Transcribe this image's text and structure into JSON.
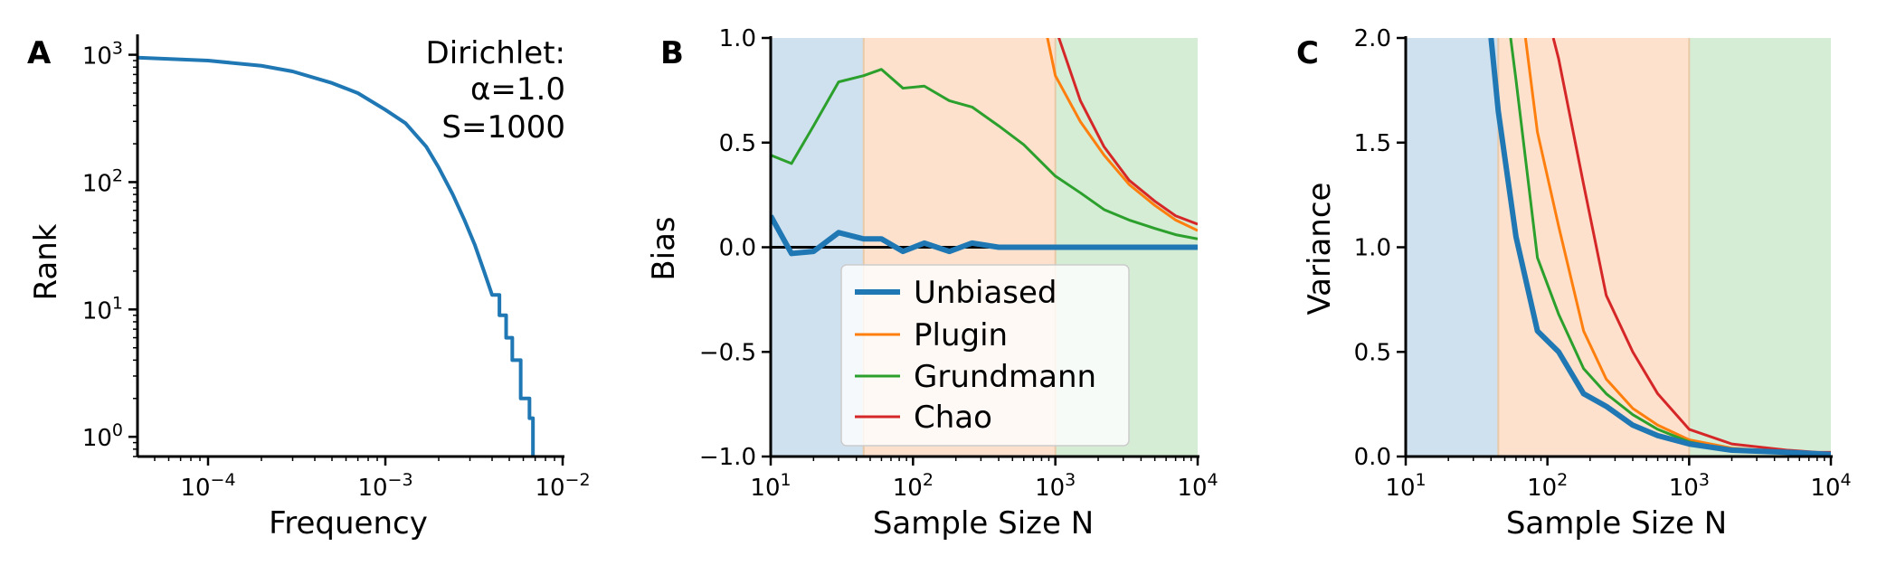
{
  "colors": {
    "unbiased": "#1f77b4",
    "plugin": "#ff7f0e",
    "grundmann": "#2ca02c",
    "chao": "#d62728",
    "band_blue": "#cfe0ee",
    "band_orange": "#fde1cc",
    "band_green": "#d5ecd5"
  },
  "chart_data": [
    {
      "panel": "A",
      "type": "line",
      "xlabel": "Frequency",
      "ylabel": "Rank",
      "xscale": "log",
      "yscale": "log",
      "xlim": [
        4e-05,
        0.01
      ],
      "ylim": [
        0.7,
        1400
      ],
      "xticks": [
        {
          "value": 0.0001,
          "base": "10",
          "exp": "−4"
        },
        {
          "value": 0.001,
          "base": "10",
          "exp": "−3"
        },
        {
          "value": 0.01,
          "base": "10",
          "exp": "−2"
        }
      ],
      "yticks": [
        {
          "value": 1,
          "base": "10",
          "exp": "0"
        },
        {
          "value": 10,
          "base": "10",
          "exp": "1"
        },
        {
          "value": 100,
          "base": "10",
          "exp": "2"
        },
        {
          "value": 1000,
          "base": "10",
          "exp": "3"
        }
      ],
      "annotation": [
        "Dirichlet:",
        "α=1.0",
        "S=1000"
      ],
      "series": [
        {
          "color_key": "unbiased",
          "x": [
            4e-05,
            0.0001,
            0.0002,
            0.0003,
            0.0005,
            0.0007,
            0.001,
            0.0013,
            0.0017,
            0.002,
            0.0024,
            0.0028,
            0.0032,
            0.0036,
            0.004,
            0.0044,
            0.0048,
            0.0052,
            0.0058,
            0.0065,
            0.0068
          ],
          "y": [
            950,
            900,
            820,
            740,
            600,
            500,
            370,
            290,
            190,
            130,
            80,
            50,
            32,
            20,
            13,
            9,
            6,
            4,
            2,
            1.4,
            0.7
          ]
        }
      ]
    },
    {
      "panel": "B",
      "type": "line",
      "xlabel": "Sample Size N",
      "ylabel": "Bias",
      "xscale": "log",
      "xlim": [
        10,
        10000
      ],
      "ylim": [
        -1.0,
        1.0
      ],
      "xticks": [
        {
          "value": 10,
          "base": "10",
          "exp": "1"
        },
        {
          "value": 100,
          "base": "10",
          "exp": "2"
        },
        {
          "value": 1000,
          "base": "10",
          "exp": "3"
        },
        {
          "value": 10000,
          "base": "10",
          "exp": "4"
        }
      ],
      "yticks": [
        {
          "value": -1.0,
          "label": "−1.0"
        },
        {
          "value": -0.5,
          "label": "−0.5"
        },
        {
          "value": 0.0,
          "label": "0.0"
        },
        {
          "value": 0.5,
          "label": "0.5"
        },
        {
          "value": 1.0,
          "label": "1.0"
        }
      ],
      "bands": [
        {
          "from": 10,
          "to": 45,
          "color_key": "band_blue"
        },
        {
          "from": 45,
          "to": 1000,
          "color_key": "band_orange"
        },
        {
          "from": 1000,
          "to": 10000,
          "color_key": "band_green"
        }
      ],
      "hline": 0,
      "legend": {
        "position": "lower-center"
      },
      "series": [
        {
          "name": "Unbiased",
          "color_key": "unbiased",
          "width": 6,
          "x": [
            10,
            14,
            20,
            30,
            45,
            60,
            85,
            120,
            180,
            260,
            400,
            600,
            1000,
            2000,
            5000,
            10000
          ],
          "y": [
            0.15,
            -0.03,
            -0.02,
            0.07,
            0.04,
            0.04,
            -0.02,
            0.02,
            -0.02,
            0.02,
            0.0,
            0.0,
            0.0,
            0.0,
            0.0,
            0.0
          ]
        },
        {
          "name": "Plugin",
          "color_key": "plugin",
          "width": 3,
          "x": [
            850,
            1000,
            1500,
            2200,
            3300,
            5000,
            7000,
            10000
          ],
          "y": [
            1.05,
            0.82,
            0.6,
            0.44,
            0.3,
            0.2,
            0.13,
            0.08
          ]
        },
        {
          "name": "Grundmann",
          "color_key": "grundmann",
          "width": 3,
          "x": [
            10,
            14,
            20,
            30,
            45,
            60,
            85,
            120,
            180,
            260,
            400,
            600,
            1000,
            1500,
            2200,
            3300,
            5000,
            7000,
            10000
          ],
          "y": [
            0.44,
            0.4,
            0.58,
            0.79,
            0.82,
            0.85,
            0.76,
            0.77,
            0.7,
            0.67,
            0.58,
            0.49,
            0.34,
            0.26,
            0.18,
            0.13,
            0.09,
            0.06,
            0.04
          ]
        },
        {
          "name": "Chao",
          "color_key": "chao",
          "width": 3,
          "x": [
            1000,
            1500,
            2200,
            3300,
            5000,
            7000,
            10000
          ],
          "y": [
            1.05,
            0.7,
            0.48,
            0.32,
            0.22,
            0.15,
            0.11
          ]
        }
      ]
    },
    {
      "panel": "C",
      "type": "line",
      "xlabel": "Sample Size N",
      "ylabel": "Variance",
      "xscale": "log",
      "xlim": [
        10,
        10000
      ],
      "ylim": [
        0.0,
        2.0
      ],
      "xticks": [
        {
          "value": 10,
          "base": "10",
          "exp": "1"
        },
        {
          "value": 100,
          "base": "10",
          "exp": "2"
        },
        {
          "value": 1000,
          "base": "10",
          "exp": "3"
        },
        {
          "value": 10000,
          "base": "10",
          "exp": "4"
        }
      ],
      "yticks": [
        {
          "value": 0.0,
          "label": "0.0"
        },
        {
          "value": 0.5,
          "label": "0.5"
        },
        {
          "value": 1.0,
          "label": "1.0"
        },
        {
          "value": 1.5,
          "label": "1.5"
        },
        {
          "value": 2.0,
          "label": "2.0"
        }
      ],
      "bands": [
        {
          "from": 10,
          "to": 45,
          "color_key": "band_blue"
        },
        {
          "from": 45,
          "to": 1000,
          "color_key": "band_orange"
        },
        {
          "from": 1000,
          "to": 10000,
          "color_key": "band_green"
        }
      ],
      "series": [
        {
          "name": "Unbiased",
          "color_key": "unbiased",
          "width": 6,
          "x": [
            40,
            45,
            60,
            85,
            120,
            180,
            260,
            400,
            600,
            1000,
            2000,
            5000,
            10000
          ],
          "y": [
            2.0,
            1.65,
            1.05,
            0.6,
            0.5,
            0.3,
            0.24,
            0.15,
            0.1,
            0.06,
            0.03,
            0.02,
            0.01
          ]
        },
        {
          "name": "Plugin",
          "color_key": "plugin",
          "width": 3,
          "x": [
            70,
            85,
            120,
            180,
            260,
            400,
            600,
            1000,
            2000,
            5000,
            10000
          ],
          "y": [
            2.0,
            1.55,
            1.1,
            0.6,
            0.37,
            0.23,
            0.15,
            0.08,
            0.04,
            0.02,
            0.01
          ]
        },
        {
          "name": "Grundmann",
          "color_key": "grundmann",
          "width": 3,
          "x": [
            55,
            60,
            85,
            120,
            180,
            260,
            400,
            600,
            1000,
            2000,
            5000,
            10000
          ],
          "y": [
            2.0,
            1.8,
            0.95,
            0.68,
            0.42,
            0.3,
            0.2,
            0.13,
            0.07,
            0.03,
            0.02,
            0.01
          ]
        },
        {
          "name": "Chao",
          "color_key": "chao",
          "width": 3,
          "x": [
            110,
            120,
            180,
            260,
            400,
            600,
            1000,
            2000,
            5000,
            8000,
            10000
          ],
          "y": [
            2.0,
            1.9,
            1.3,
            0.77,
            0.5,
            0.3,
            0.13,
            0.06,
            0.03,
            0.02,
            0.02
          ]
        }
      ]
    }
  ]
}
